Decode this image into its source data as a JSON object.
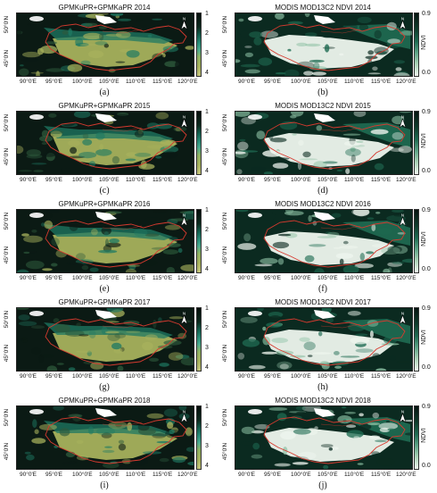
{
  "left_column": {
    "titles": [
      "GPMKuPR+GPMKaPR 2014",
      "GPMKuPR+GPMKaPR 2015",
      "GPMKuPR+GPMKaPR 2016",
      "GPMKuPR+GPMKaPR 2017",
      "GPMKuPR+GPMKaPR 2018"
    ],
    "labels": [
      "(a)",
      "(c)",
      "(e)",
      "(g)",
      "(i)"
    ],
    "colorbar_ticks": [
      "1",
      "2",
      "3",
      "4"
    ]
  },
  "right_column": {
    "titles": [
      "MODIS MOD13C2 NDVI 2014",
      "MODIS MOD13C2 NDVI 2015",
      "MODIS MOD13C2 NDVI 2016",
      "MODIS MOD13C2 NDVI 2017",
      "MODIS MOD13C2 NDVI 2018"
    ],
    "labels": [
      "(b)",
      "(d)",
      "(f)",
      "(h)",
      "(j)"
    ],
    "colorbar_ticks": [
      "0.9",
      "0.0"
    ],
    "colorbar_label": "NDVI"
  },
  "axes": {
    "lat_labels": [
      "50°0'N",
      "45°0'N"
    ],
    "lon_labels": [
      "90°0'E",
      "95°0'E",
      "100°0'E",
      "105°0'E",
      "110°0'E",
      "115°0'E",
      "120°0'E"
    ]
  },
  "north_arrow": "N",
  "colors": {
    "class_dark": "#0b1a14",
    "class_teal": "#1f7a63",
    "class_olive": "#a7b15c",
    "ndvi_dark": "#0b2a20",
    "ndvi_light": "#eef5ee",
    "boundary": "#d63a2f",
    "snow": "#ffffff"
  }
}
